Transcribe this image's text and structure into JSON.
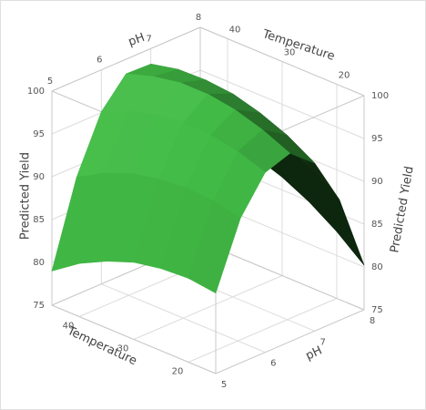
{
  "chart_data": {
    "type": "surface",
    "x_label": "pH",
    "y_label": "Temperature",
    "z_label": "Predicted Yield",
    "x": [
      5,
      5.5,
      6,
      6.5,
      7,
      7.5,
      8
    ],
    "y": [
      15,
      20,
      25,
      30,
      35,
      40,
      45
    ],
    "z": [
      [
        84.4,
        91.9,
        96.0,
        97.0,
        94.6,
        89.1,
        80.2
      ],
      [
        84.8,
        92.6,
        97.1,
        98.4,
        96.5,
        91.3,
        82.8
      ],
      [
        84.6,
        92.8,
        97.7,
        99.4,
        97.8,
        93.0,
        84.9
      ],
      [
        84.0,
        92.5,
        97.8,
        99.9,
        98.7,
        94.2,
        86.5
      ],
      [
        82.8,
        91.8,
        97.4,
        99.9,
        99.0,
        95.0,
        87.6
      ],
      [
        81.2,
        90.5,
        96.5,
        99.3,
        98.9,
        95.2,
        88.2
      ],
      [
        79.0,
        88.7,
        95.1,
        98.3,
        98.2,
        94.9,
        88.3
      ]
    ],
    "xlim": [
      5,
      8
    ],
    "ylim": [
      15,
      45
    ],
    "zlim": [
      75,
      100
    ],
    "xticks": [
      5,
      6,
      7,
      8
    ],
    "yticks": [
      20,
      30,
      40
    ],
    "zticks": [
      75,
      80,
      85,
      90,
      95,
      100
    ],
    "color": "#4caf50",
    "grid": true
  }
}
